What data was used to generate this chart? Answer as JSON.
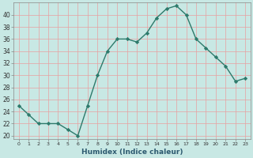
{
  "x": [
    0,
    1,
    2,
    3,
    4,
    5,
    6,
    7,
    8,
    9,
    10,
    11,
    12,
    13,
    14,
    15,
    16,
    17,
    18,
    19,
    20,
    21,
    22,
    23
  ],
  "y": [
    25,
    23.5,
    22,
    22,
    22,
    21,
    20,
    25,
    30,
    34,
    36,
    36,
    35.5,
    37,
    39.5,
    41,
    41.5,
    40,
    36,
    34.5,
    33,
    31.5,
    29,
    29.5
  ],
  "xlabel": "Humidex (Indice chaleur)",
  "line_color": "#2d7a6b",
  "bg_color": "#c8e8e4",
  "plot_bg_color": "#c8e8e4",
  "grid_color": "#e8a0a0",
  "spine_color": "#888888",
  "ylim": [
    19.5,
    42
  ],
  "yticks": [
    20,
    22,
    24,
    26,
    28,
    30,
    32,
    34,
    36,
    38,
    40
  ],
  "xlim": [
    -0.5,
    23.5
  ],
  "xlabel_color": "#2d5a70",
  "tick_label_color": "#333333"
}
